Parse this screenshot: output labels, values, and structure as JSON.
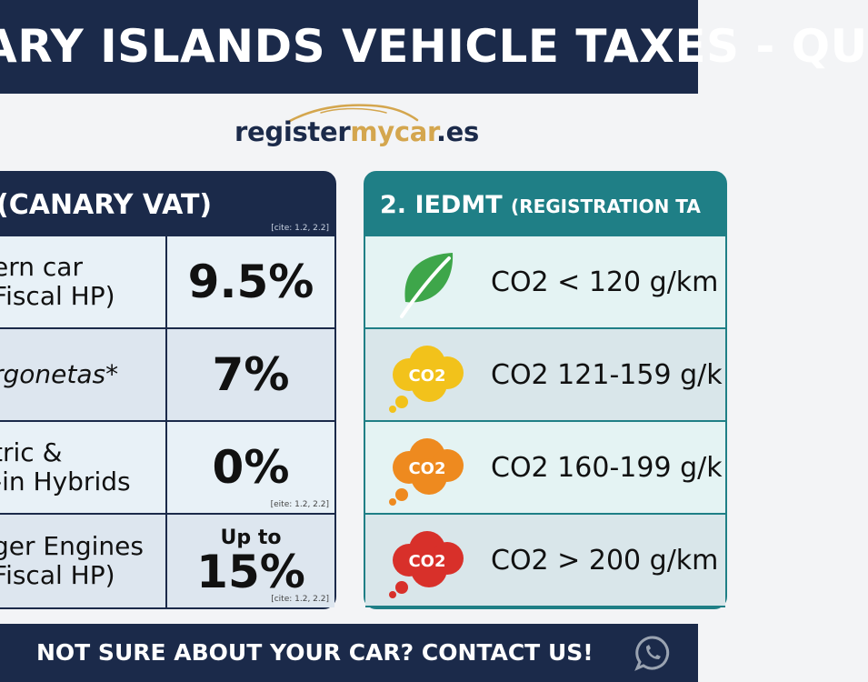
{
  "header": {
    "title": "ARY ISLANDS VEHICLE TAXES - QU"
  },
  "logo": {
    "part1": "register",
    "part2": "mycar",
    "part3": ".es"
  },
  "igic": {
    "heading": "(CANARY VAT)",
    "heading_cite": "[cite: 1.2, 2.2]",
    "rows": [
      {
        "label_line1": "ern car",
        "label_line2": "Fiscal HP)",
        "value": "9.5%"
      },
      {
        "label_line1": "rgonetas*",
        "value": "7%"
      },
      {
        "label_line1": "tric &",
        "label_line2": "-in Hybrids",
        "value": "0%",
        "cite": "[eite: 1.2, 2.2]"
      },
      {
        "label_line1": "ger Engines",
        "label_line2": "Fiscal HP)",
        "value_prefix": "Up to",
        "value": "15%",
        "cite": "[cite: 1.2, 2.2]"
      }
    ]
  },
  "iedmt": {
    "heading_main": "2. IEDMT",
    "heading_sub": "(REGISTRATION TA",
    "rows": [
      {
        "icon": "leaf-icon",
        "icon_color": "#3ea64a",
        "text": "CO2 < 120 g/km"
      },
      {
        "icon": "co2-cloud-icon",
        "icon_color": "#f2c21b",
        "icon_label": "CO2",
        "text": "CO2 121-159 g/k"
      },
      {
        "icon": "co2-cloud-icon",
        "icon_color": "#ee8a1f",
        "icon_label": "CO2",
        "text": "CO2 160-199 g/k"
      },
      {
        "icon": "co2-cloud-icon",
        "icon_color": "#d8302a",
        "icon_label": "CO2",
        "text": "CO2 > 200 g/km"
      }
    ]
  },
  "footer": {
    "cta": "NOT SURE ABOUT YOUR CAR? CONTACT US!",
    "icon": "whatsapp-icon"
  },
  "colors": {
    "navy": "#1b2a4a",
    "teal": "#1f7f86",
    "gold": "#d4a64e"
  }
}
